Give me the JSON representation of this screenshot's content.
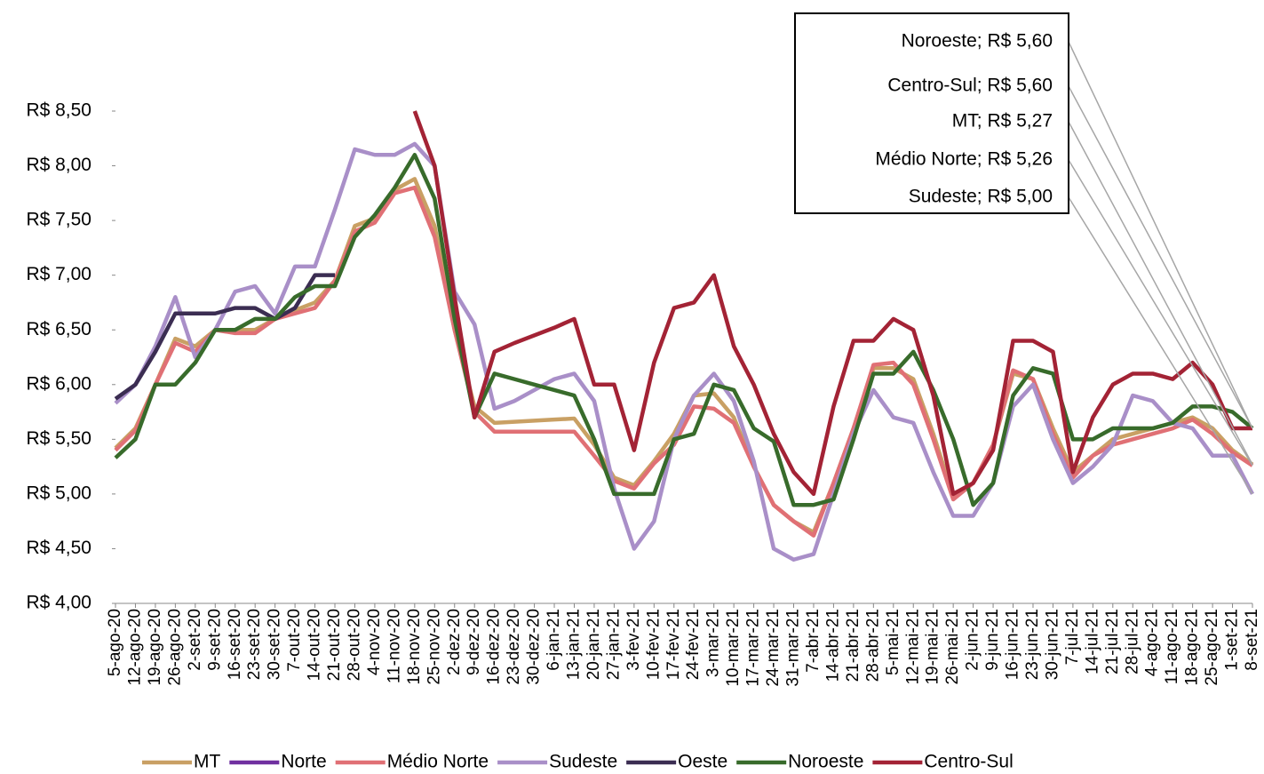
{
  "chart_data": {
    "type": "line",
    "categories": [
      "5-ago-20",
      "12-ago-20",
      "19-ago-20",
      "26-ago-20",
      "2-set-20",
      "9-set-20",
      "16-set-20",
      "23-set-20",
      "30-set-20",
      "7-out-20",
      "14-out-20",
      "21-out-20",
      "28-out-20",
      "4-nov-20",
      "11-nov-20",
      "18-nov-20",
      "25-nov-20",
      "2-dez-20",
      "9-dez-20",
      "16-dez-20",
      "23-dez-20",
      "30-dez-20",
      "6-jan-21",
      "13-jan-21",
      "20-jan-21",
      "27-jan-21",
      "3-fev-21",
      "10-fev-21",
      "17-fev-21",
      "24-fev-21",
      "3-mar-21",
      "10-mar-21",
      "17-mar-21",
      "24-mar-21",
      "31-mar-21",
      "7-abr-21",
      "14-abr-21",
      "21-abr-21",
      "28-abr-21",
      "5-mai-21",
      "12-mai-21",
      "19-mai-21",
      "26-mai-21",
      "2-jun-21",
      "9-jun-21",
      "16-jun-21",
      "23-jun-21",
      "30-jun-21",
      "7-jul-21",
      "14-jul-21",
      "21-jul-21",
      "28-jul-21",
      "4-ago-21",
      "11-ago-21",
      "18-ago-21",
      "25-ago-21",
      "1-set-21",
      "8-set-21"
    ],
    "series": [
      {
        "name": "MT",
        "color": "#c9a064",
        "values": [
          5.42,
          5.6,
          6.0,
          6.42,
          6.35,
          6.5,
          6.5,
          6.5,
          6.6,
          6.68,
          6.75,
          6.95,
          7.45,
          7.52,
          7.78,
          7.88,
          7.45,
          6.5,
          5.8,
          5.65,
          5.66,
          5.67,
          5.68,
          5.69,
          5.45,
          5.15,
          5.08,
          5.3,
          5.55,
          5.9,
          5.92,
          5.7,
          5.25,
          4.9,
          4.75,
          4.65,
          5.1,
          5.6,
          6.15,
          6.15,
          6.05,
          5.55,
          4.98,
          5.1,
          5.45,
          6.1,
          6.05,
          5.6,
          5.2,
          5.35,
          5.5,
          5.55,
          5.6,
          5.65,
          5.7,
          5.6,
          5.4,
          5.27
        ]
      },
      {
        "name": "Norte",
        "color": "#7030a0",
        "values": [
          null,
          null,
          null,
          null,
          null,
          null,
          null,
          null,
          null,
          null,
          null,
          null,
          null,
          null,
          null,
          null,
          null,
          null,
          null,
          null,
          null,
          null,
          null,
          null,
          null,
          null,
          null,
          null,
          null,
          null,
          null,
          null,
          null,
          null,
          null,
          null,
          null,
          null,
          null,
          null,
          null,
          null,
          null,
          null,
          null,
          null,
          null,
          null,
          null,
          null,
          null,
          null,
          null,
          null,
          null,
          null,
          null,
          null
        ]
      },
      {
        "name": "Médio Norte",
        "color": "#e07075",
        "values": [
          5.4,
          5.58,
          6.0,
          6.38,
          6.3,
          6.5,
          6.47,
          6.47,
          6.6,
          6.65,
          6.7,
          6.95,
          7.4,
          7.48,
          7.75,
          7.8,
          7.35,
          6.5,
          5.75,
          5.57,
          5.57,
          5.57,
          5.57,
          5.57,
          5.35,
          5.12,
          5.05,
          5.28,
          5.45,
          5.8,
          5.78,
          5.65,
          5.25,
          4.9,
          4.75,
          4.62,
          5.1,
          5.6,
          6.18,
          6.2,
          6.0,
          5.5,
          4.95,
          5.1,
          5.45,
          6.13,
          6.05,
          5.55,
          5.15,
          5.35,
          5.45,
          5.5,
          5.55,
          5.6,
          5.68,
          5.55,
          5.38,
          5.26
        ]
      },
      {
        "name": "Sudeste",
        "color": "#a98fc8",
        "values": [
          5.83,
          6.0,
          6.35,
          6.8,
          6.25,
          6.5,
          6.85,
          6.9,
          6.65,
          7.08,
          7.08,
          7.6,
          8.15,
          8.1,
          8.1,
          8.2,
          8.0,
          6.85,
          6.55,
          5.78,
          5.85,
          5.95,
          6.05,
          6.1,
          5.85,
          5.05,
          4.5,
          4.75,
          5.5,
          5.9,
          6.1,
          5.85,
          5.3,
          4.5,
          4.4,
          4.45,
          5.0,
          5.55,
          5.95,
          5.7,
          5.65,
          5.2,
          4.8,
          4.8,
          5.1,
          5.8,
          6.0,
          5.5,
          5.1,
          5.25,
          5.45,
          5.9,
          5.85,
          5.65,
          5.6,
          5.35,
          5.35,
          5.0
        ]
      },
      {
        "name": "Oeste",
        "color": "#3b2d52",
        "values": [
          5.87,
          6.0,
          6.3,
          6.65,
          6.65,
          6.65,
          6.7,
          6.7,
          6.6,
          6.7,
          7.0,
          7.0,
          null,
          null,
          null,
          null,
          null,
          null,
          null,
          null,
          null,
          null,
          null,
          null,
          null,
          null,
          null,
          null,
          null,
          null,
          null,
          null,
          null,
          null,
          null,
          null,
          null,
          null,
          null,
          null,
          null,
          null,
          null,
          null,
          null,
          null,
          null,
          null,
          null,
          null,
          null,
          null,
          null,
          null,
          null,
          null,
          null,
          null
        ]
      },
      {
        "name": "Noroeste",
        "color": "#386b2b",
        "values": [
          5.33,
          5.5,
          6.0,
          6.0,
          6.2,
          6.5,
          6.5,
          6.6,
          6.6,
          6.8,
          6.9,
          6.9,
          7.35,
          7.55,
          7.8,
          8.1,
          7.7,
          6.6,
          5.7,
          6.1,
          6.05,
          6.0,
          5.95,
          5.9,
          5.5,
          5.0,
          5.0,
          5.0,
          5.5,
          5.55,
          6.0,
          5.95,
          5.6,
          5.48,
          4.9,
          4.9,
          4.95,
          5.5,
          6.1,
          6.1,
          6.3,
          5.95,
          5.5,
          4.9,
          5.1,
          5.9,
          6.15,
          6.1,
          5.5,
          5.5,
          5.6,
          5.6,
          5.6,
          5.65,
          5.8,
          5.8,
          5.75,
          5.6
        ]
      },
      {
        "name": "Centro-Sul",
        "color": "#a32335",
        "values": [
          null,
          null,
          null,
          null,
          null,
          null,
          null,
          null,
          null,
          null,
          null,
          null,
          null,
          null,
          null,
          8.5,
          8.0,
          6.8,
          5.7,
          6.3,
          6.38,
          6.45,
          6.52,
          6.6,
          6.0,
          6.0,
          5.4,
          6.2,
          6.7,
          6.75,
          7.0,
          6.35,
          6.0,
          5.55,
          5.2,
          5.0,
          5.8,
          6.4,
          6.4,
          6.6,
          6.5,
          5.9,
          5.0,
          5.1,
          5.4,
          6.4,
          6.4,
          6.3,
          5.2,
          5.7,
          6.0,
          6.1,
          6.1,
          6.05,
          6.2,
          6.0,
          5.6,
          5.6
        ]
      }
    ],
    "ylim": [
      4,
      8.5
    ],
    "yticks": [
      {
        "value": 4,
        "label": "R$ 4,00"
      },
      {
        "value": 4.5,
        "label": "R$ 4,50"
      },
      {
        "value": 5,
        "label": "R$ 5,00"
      },
      {
        "value": 5.5,
        "label": "R$ 5,50"
      },
      {
        "value": 6,
        "label": "R$ 6,00"
      },
      {
        "value": 6.5,
        "label": "R$ 6,50"
      },
      {
        "value": 7,
        "label": "R$ 7,00"
      },
      {
        "value": 7.5,
        "label": "R$ 7,50"
      },
      {
        "value": 8,
        "label": "R$ 8,00"
      },
      {
        "value": 8.5,
        "label": "R$ 8,50"
      }
    ],
    "annotations": [
      "Noroeste; R$ 5,60",
      "Centro-Sul; R$ 5,60",
      "MT; R$ 5,27",
      "Médio Norte; R$ 5,26",
      "Sudeste; R$ 5,00"
    ],
    "legend": "bottom",
    "grid": false
  }
}
